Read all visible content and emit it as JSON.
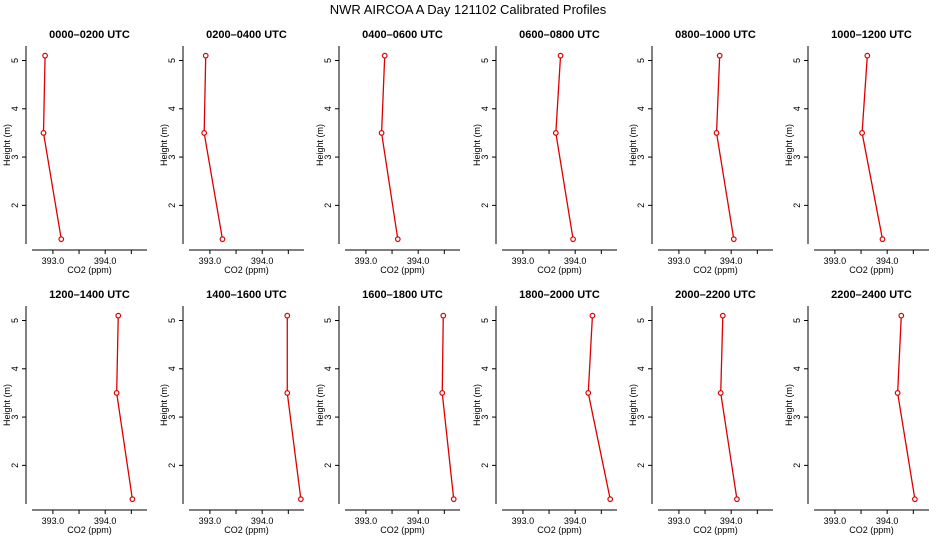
{
  "title": "NWR AIRCOA A  Day 121102  Calibrated Profiles",
  "colors": {
    "series": "#dd0000",
    "axis": "#000000"
  },
  "chart_data": {
    "type": "line",
    "xlabel": "CO2 (ppm)",
    "ylabel": "Height (m)",
    "xlim": [
      392.6,
      394.8
    ],
    "ylim": [
      1.2,
      5.3
    ],
    "xticks": [
      393.0,
      393.5,
      394.0,
      394.5
    ],
    "xtick_labels": [
      "393.0",
      "",
      "394.0",
      ""
    ],
    "yticks": [
      2,
      3,
      4,
      5
    ],
    "ytick_labels": [
      "2",
      "3",
      "4",
      "5"
    ],
    "heights": [
      5.1,
      3.5,
      1.3
    ],
    "panels": [
      {
        "title": "0000–0200 UTC",
        "values": [
          392.85,
          392.82,
          393.16
        ]
      },
      {
        "title": "0200–0400 UTC",
        "values": [
          392.92,
          392.89,
          393.24
        ]
      },
      {
        "title": "0400–0600 UTC",
        "values": [
          393.36,
          393.3,
          393.61
        ]
      },
      {
        "title": "0600–0800 UTC",
        "values": [
          393.72,
          393.63,
          393.96
        ]
      },
      {
        "title": "0800–1000 UTC",
        "values": [
          393.78,
          393.72,
          394.05
        ]
      },
      {
        "title": "1000–1200 UTC",
        "values": [
          393.62,
          393.52,
          393.91
        ]
      },
      {
        "title": "1200–1400 UTC",
        "values": [
          394.25,
          394.22,
          394.52
        ]
      },
      {
        "title": "1400–1600 UTC",
        "values": [
          394.48,
          394.48,
          394.74
        ]
      },
      {
        "title": "1600–1800 UTC",
        "values": [
          394.48,
          394.46,
          394.68
        ]
      },
      {
        "title": "1800–2000 UTC",
        "values": [
          394.33,
          394.25,
          394.67
        ]
      },
      {
        "title": "2000–2200 UTC",
        "values": [
          393.84,
          393.8,
          394.11
        ]
      },
      {
        "title": "2200–2400 UTC",
        "values": [
          394.27,
          394.2,
          394.53
        ]
      }
    ]
  }
}
